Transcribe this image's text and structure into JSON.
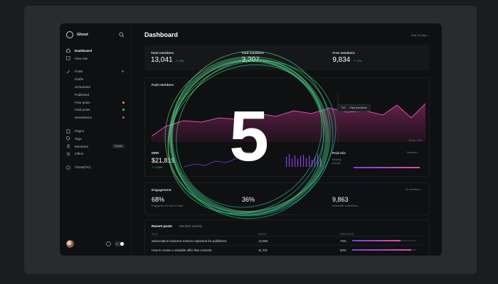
{
  "app": {
    "name": "Ghost"
  },
  "sidebar": {
    "items": [
      {
        "label": "Dashboard",
        "icon": "home-icon",
        "active": true
      },
      {
        "label": "View site",
        "icon": "external-icon"
      }
    ],
    "posts": {
      "label": "Posts",
      "sub": [
        {
          "label": "Drafts"
        },
        {
          "label": "Scheduled"
        },
        {
          "label": "Published"
        },
        {
          "label": "Free posts",
          "dot": "#d6a23a"
        },
        {
          "label": "Paid posts",
          "dot": "#35d071"
        },
        {
          "label": "Newsletters",
          "dot": "#e64a6a"
        }
      ]
    },
    "more": [
      {
        "label": "Pages",
        "icon": "page-icon"
      },
      {
        "label": "Tags",
        "icon": "tag-icon"
      },
      {
        "label": "Members",
        "icon": "members-icon",
        "badge": "13,041"
      },
      {
        "label": "Offers",
        "icon": "offers-icon"
      }
    ],
    "pro": {
      "label": "Ghost(Pro)",
      "icon": "cloud-icon"
    },
    "footer": {
      "toggle_value": "3"
    }
  },
  "main": {
    "title": "Dashboard",
    "range": "Past 30 days ⌄",
    "kpis": [
      {
        "label": "Total members",
        "value": "13,041",
        "delta": "↗ +4%"
      },
      {
        "label": "Paid members",
        "value": "3,207",
        "delta": ""
      },
      {
        "label": "Free members",
        "value": "9,834",
        "delta": "↗ +4%"
      }
    ],
    "chart": {
      "title": "Paid members",
      "tooltip": {
        "value": "719",
        "label": "Paid members"
      },
      "x_end": "19 Apr, 2023"
    },
    "sub": [
      {
        "label": "MRR",
        "value": "$21,819",
        "delta": "↗ +3.8%",
        "note": ""
      },
      {
        "label": "...ions",
        "value": "",
        "delta": "",
        "note": ""
      },
      {
        "label": "Paid mix",
        "value": "",
        "delta": "",
        "note": "",
        "link": "Cadence ⌄",
        "legend": [
          "Monthly",
          "Annual"
        ]
      }
    ],
    "engagement": {
      "title": "Engagement",
      "link": "All members ⌄",
      "items": [
        {
          "value": "68%",
          "note": "Engaged in the last 30 days"
        },
        {
          "value": "36%",
          "note": ""
        },
        {
          "value": "9,863",
          "note": "Newsletter subscribers"
        }
      ]
    },
    "posts": {
      "tabs": [
        "Recent posts",
        "Member activity"
      ],
      "headers": [
        "TITLE",
        "SENDS",
        "OPEN RATE"
      ],
      "rows": [
        {
          "title": "Subscription business metrics explained for publishers",
          "sends": "12,984",
          "open": "76%",
          "pct": 0.76
        },
        {
          "title": "How to create a valuable offer that converts",
          "sends": "11,701",
          "open": "92%",
          "pct": 0.92
        }
      ]
    }
  },
  "overlay": {
    "countdown": "5"
  },
  "colors": {
    "accent": "#e64aa8",
    "ring": "#3ee08a",
    "positive": "#35d071"
  }
}
